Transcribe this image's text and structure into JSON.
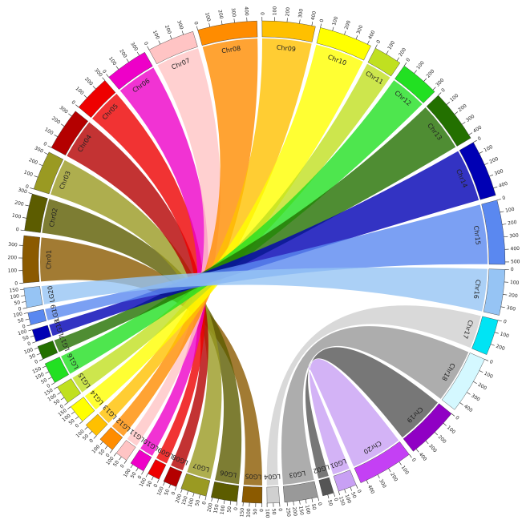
{
  "chart_data": {
    "type": "circos",
    "segments": [
      {
        "name": "Chr01",
        "color": "#8b5a00",
        "length": 380,
        "ticks": [
          0,
          100,
          200,
          300
        ]
      },
      {
        "name": "Chr02",
        "color": "#5c5c00",
        "length": 300,
        "ticks": [
          0,
          100,
          200,
          300
        ]
      },
      {
        "name": "Chr03",
        "color": "#9a9a22",
        "length": 320,
        "ticks": [
          0,
          100,
          200,
          300
        ]
      },
      {
        "name": "Chr04",
        "color": "#b40000",
        "length": 350,
        "ticks": [
          0,
          100,
          200,
          300
        ]
      },
      {
        "name": "Chr05",
        "color": "#ee0000",
        "length": 300,
        "ticks": [
          0,
          100,
          200,
          300
        ]
      },
      {
        "name": "Chr06",
        "color": "#ee00c8",
        "length": 350,
        "ticks": [
          0,
          100,
          200,
          300
        ]
      },
      {
        "name": "Chr07",
        "color": "#ffc4c4",
        "length": 380,
        "ticks": [
          0,
          100,
          200,
          300
        ]
      },
      {
        "name": "Chr08",
        "color": "#ff8c00",
        "length": 480,
        "ticks": [
          0,
          100,
          200,
          300,
          400
        ]
      },
      {
        "name": "Chr09",
        "color": "#ffc000",
        "length": 430,
        "ticks": [
          0,
          100,
          200,
          300,
          400
        ]
      },
      {
        "name": "Chr10",
        "color": "#ffff00",
        "length": 430,
        "ticks": [
          0,
          100,
          200,
          300,
          400
        ]
      },
      {
        "name": "Chr11",
        "color": "#c0e020",
        "length": 230,
        "ticks": [
          0,
          100,
          200
        ]
      },
      {
        "name": "Chr12",
        "color": "#22e022",
        "length": 320,
        "ticks": [
          0,
          100,
          200,
          300
        ]
      },
      {
        "name": "Chr13",
        "color": "#237000",
        "length": 430,
        "ticks": [
          0,
          100,
          200,
          300,
          400
        ]
      },
      {
        "name": "Chr14",
        "color": "#0000b4",
        "length": 460,
        "ticks": [
          0,
          100,
          200,
          300,
          400
        ]
      },
      {
        "name": "Chr15",
        "color": "#5a88f0",
        "length": 520,
        "ticks": [
          0,
          100,
          200,
          300,
          400,
          500
        ]
      },
      {
        "name": "Chr16",
        "color": "#96c4f4",
        "length": 370,
        "ticks": [
          0,
          100,
          200,
          300
        ]
      },
      {
        "name": "Chr17",
        "color": "#00e4f4",
        "length": 290,
        "ticks": [
          0,
          100,
          200
        ]
      },
      {
        "name": "Chr18",
        "color": "#d4f8ff",
        "length": 470,
        "ticks": [
          0,
          100,
          200,
          300,
          400
        ]
      },
      {
        "name": "Chr19",
        "color": "#9000c4",
        "length": 430,
        "ticks": [
          0,
          100,
          200,
          300,
          400
        ]
      },
      {
        "name": "Chr20",
        "color": "#c440f4",
        "length": 450,
        "ticks": [
          0,
          100,
          200,
          300,
          400
        ]
      },
      {
        "name": "LG01",
        "color": "#c8a0f4",
        "length": 150,
        "ticks": [
          0,
          50,
          100,
          150
        ]
      },
      {
        "name": "LG02",
        "color": "#555555",
        "length": 90,
        "ticks": [
          0,
          50
        ]
      },
      {
        "name": "LG03",
        "color": "#999999",
        "length": 270,
        "ticks": [
          0,
          50,
          100,
          150,
          200,
          250
        ]
      },
      {
        "name": "LG04",
        "color": "#d0d0d0",
        "length": 100,
        "ticks": [
          0,
          50,
          100
        ]
      },
      {
        "name": "LG05",
        "color": "#8b5a00",
        "length": 160,
        "ticks": [
          0,
          50,
          100,
          150
        ]
      },
      {
        "name": "LG06",
        "color": "#5c5c00",
        "length": 210,
        "ticks": [
          0,
          50,
          100,
          150,
          200
        ]
      },
      {
        "name": "LG07",
        "color": "#9a9a22",
        "length": 210,
        "ticks": [
          0,
          50,
          100,
          150,
          200
        ]
      },
      {
        "name": "LG08",
        "color": "#b40000",
        "length": 110,
        "ticks": [
          0,
          50,
          100
        ]
      },
      {
        "name": "LG09",
        "color": "#ee0000",
        "length": 100,
        "ticks": [
          0,
          50,
          100
        ]
      },
      {
        "name": "LG10",
        "color": "#ee00c8",
        "length": 120,
        "ticks": [
          0,
          50,
          100
        ]
      },
      {
        "name": "LG11",
        "color": "#ffc4c4",
        "length": 100,
        "ticks": [
          0,
          50,
          100
        ]
      },
      {
        "name": "LG12",
        "color": "#ff8c00",
        "length": 130,
        "ticks": [
          0,
          50,
          100
        ]
      },
      {
        "name": "LG13",
        "color": "#ffc000",
        "length": 120,
        "ticks": [
          0,
          50,
          100
        ]
      },
      {
        "name": "LG14",
        "color": "#ffff00",
        "length": 150,
        "ticks": [
          0,
          50,
          100,
          150
        ]
      },
      {
        "name": "LG15",
        "color": "#c0e020",
        "length": 150,
        "ticks": [
          0,
          50,
          100,
          150
        ]
      },
      {
        "name": "LG16",
        "color": "#22e022",
        "length": 170,
        "ticks": [
          0,
          50,
          100,
          150
        ]
      },
      {
        "name": "LG17",
        "color": "#237000",
        "length": 110,
        "ticks": [
          0,
          50,
          100
        ]
      },
      {
        "name": "LG18",
        "color": "#0000b4",
        "length": 100,
        "ticks": [
          0,
          50,
          100
        ]
      },
      {
        "name": "LG19",
        "color": "#5a88f0",
        "length": 100,
        "ticks": [
          0,
          50,
          100
        ]
      },
      {
        "name": "LG20",
        "color": "#96c4f4",
        "length": 160,
        "ticks": [
          0,
          50,
          100,
          150
        ]
      }
    ],
    "links": [
      {
        "source": "LG01",
        "target": "Chr20"
      },
      {
        "source": "LG02",
        "target": "Chr19"
      },
      {
        "source": "LG03",
        "target": "Chr18"
      },
      {
        "source": "LG04",
        "target": "Chr17"
      },
      {
        "source": "LG05",
        "target": "Chr01"
      },
      {
        "source": "LG06",
        "target": "Chr02"
      },
      {
        "source": "LG07",
        "target": "Chr03"
      },
      {
        "source": "LG08",
        "target": "Chr04"
      },
      {
        "source": "LG09",
        "target": "Chr05"
      },
      {
        "source": "LG10",
        "target": "Chr06"
      },
      {
        "source": "LG11",
        "target": "Chr07"
      },
      {
        "source": "LG12",
        "target": "Chr08"
      },
      {
        "source": "LG13",
        "target": "Chr09"
      },
      {
        "source": "LG14",
        "target": "Chr10"
      },
      {
        "source": "LG15",
        "target": "Chr11"
      },
      {
        "source": "LG16",
        "target": "Chr12"
      },
      {
        "source": "LG17",
        "target": "Chr13"
      },
      {
        "source": "LG18",
        "target": "Chr14"
      },
      {
        "source": "LG19",
        "target": "Chr15"
      },
      {
        "source": "LG20",
        "target": "Chr16"
      }
    ]
  }
}
